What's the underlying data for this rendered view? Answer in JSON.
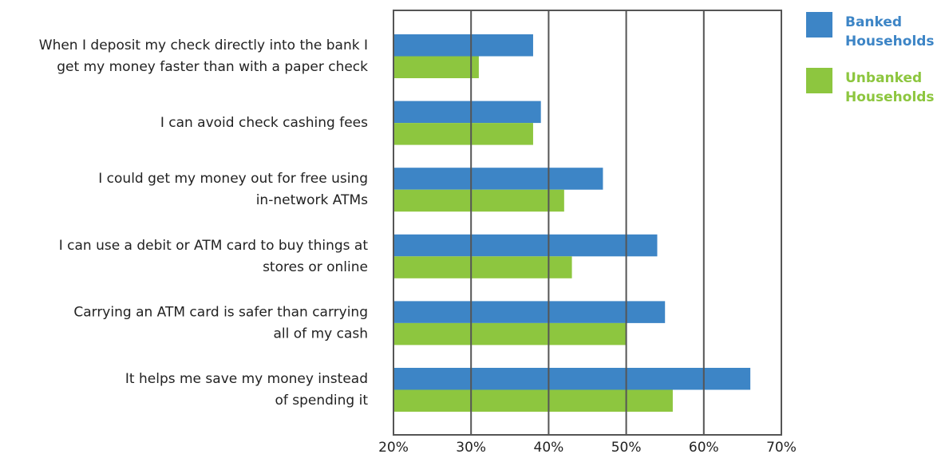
{
  "chart_data": {
    "type": "bar",
    "orientation": "horizontal",
    "categories": [
      [
        "When I deposit my check directly into the bank I",
        "get my money faster than with a paper check"
      ],
      [
        "I can avoid check cashing fees"
      ],
      [
        "I could get my money out for free using",
        "in-network ATMs"
      ],
      [
        "I can use a debit or ATM card to buy things at",
        "stores or online"
      ],
      [
        "Carrying an ATM card is safer than carrying",
        "all of my cash"
      ],
      [
        "It helps me save my money instead",
        "of spending it"
      ]
    ],
    "series": [
      {
        "name": "Banked Households",
        "legend_lines": [
          "Banked",
          "Households"
        ],
        "color": "#3D85C6",
        "values": [
          38,
          39,
          47,
          54,
          55,
          66
        ]
      },
      {
        "name": "Unbanked Households",
        "legend_lines": [
          "Unbanked",
          "Households"
        ],
        "color": "#8DC63F",
        "values": [
          31,
          38,
          42,
          43,
          50,
          56
        ]
      }
    ],
    "xlim": [
      20,
      70
    ],
    "xticks": [
      20,
      30,
      40,
      50,
      60,
      70
    ],
    "xtick_labels": [
      "20%",
      "30%",
      "40%",
      "50%",
      "60%",
      "70%"
    ],
    "grid": true,
    "legend_position": "top-right",
    "title": "",
    "xlabel": "",
    "ylabel": ""
  }
}
